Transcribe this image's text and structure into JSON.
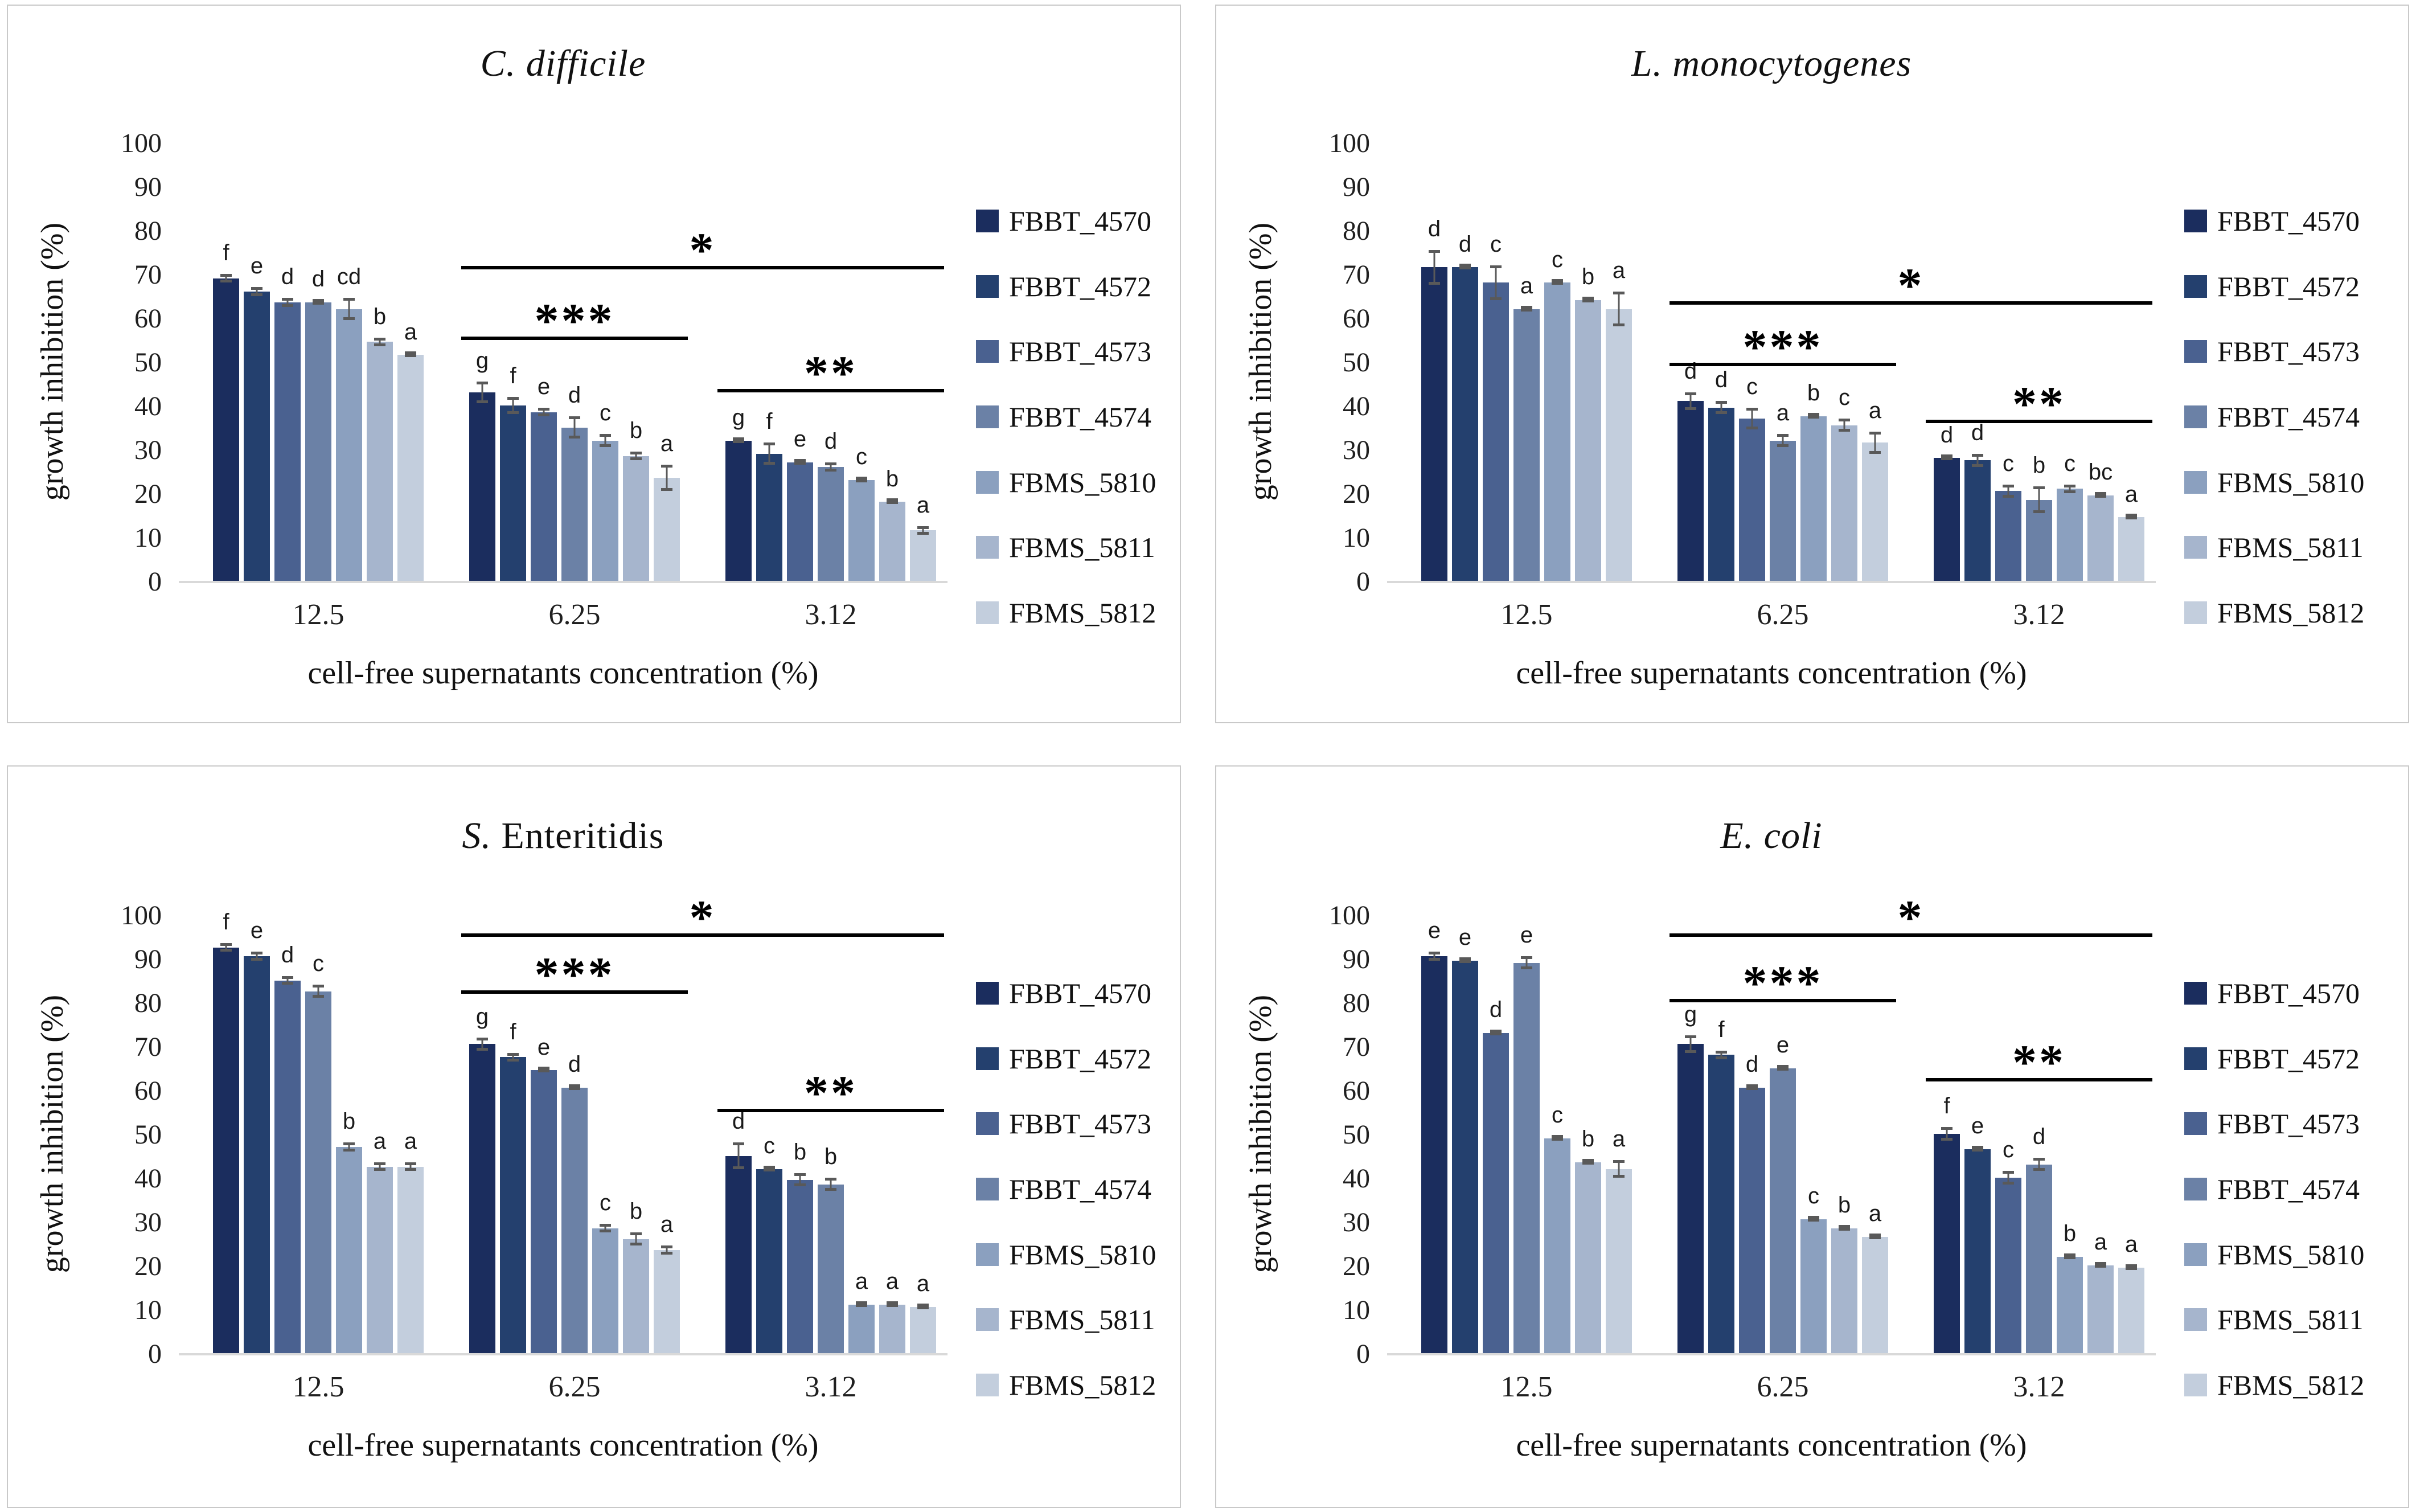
{
  "figure": {
    "ylabel": "growth inhibition (%)",
    "xlabel": "cell-free supernatants concentration (%)",
    "categories": [
      "12.5",
      "6.25",
      "3.12"
    ],
    "yticks": [
      100,
      90,
      80,
      70,
      60,
      50,
      40,
      30,
      20,
      10,
      0
    ],
    "ylim": [
      0,
      100
    ],
    "legend": [
      "FBBT_4570",
      "FBBT_4572",
      "FBBT_4573",
      "FBBT_4574",
      "FBMS_5810",
      "FBMS_5811",
      "FBMS_5812"
    ],
    "palette": [
      "#1b2d5e",
      "#24406e",
      "#4a6190",
      "#6b81a6",
      "#8ba0bf",
      "#a6b5cd",
      "#c3cedd"
    ],
    "error_color": "#595959",
    "baseline_color": "#d9d9d9"
  },
  "chart_data": [
    {
      "type": "bar",
      "title_plain": "C. difficile",
      "title_parts": [
        {
          "text": "C. difficile",
          "italic": true
        }
      ],
      "xlabel": "cell-free supernatants concentration (%)",
      "ylabel": "growth inhibition (%)",
      "ylim": [
        0,
        100
      ],
      "categories": [
        "12.5",
        "6.25",
        "3.12"
      ],
      "series": [
        {
          "name": "FBBT_4570",
          "values": [
            69,
            43,
            32
          ],
          "errors": [
            1,
            2.5,
            0.5
          ],
          "letters": [
            "f",
            "g",
            "g"
          ]
        },
        {
          "name": "FBBT_4572",
          "values": [
            66,
            40,
            29
          ],
          "errors": [
            1,
            2,
            2.5
          ],
          "letters": [
            "e",
            "f",
            "f"
          ]
        },
        {
          "name": "FBBT_4573",
          "values": [
            63.5,
            38.5,
            27
          ],
          "errors": [
            1,
            1,
            0.5
          ],
          "letters": [
            "d",
            "e",
            "e"
          ]
        },
        {
          "name": "FBBT_4574",
          "values": [
            63.5,
            35,
            26
          ],
          "errors": [
            0.5,
            2.5,
            1
          ],
          "letters": [
            "d",
            "d",
            "d"
          ]
        },
        {
          "name": "FBMS_5810",
          "values": [
            62,
            32,
            23
          ],
          "errors": [
            2.5,
            1.5,
            0.5
          ],
          "letters": [
            "cd",
            "c",
            "c"
          ]
        },
        {
          "name": "FBMS_5811",
          "values": [
            54.5,
            28.5,
            18
          ],
          "errors": [
            1,
            1,
            0.5
          ],
          "letters": [
            "b",
            "b",
            "b"
          ]
        },
        {
          "name": "FBMS_5812",
          "values": [
            51.5,
            23.5,
            11.5
          ],
          "errors": [
            0.5,
            3,
            1
          ],
          "letters": [
            "a",
            "a",
            "a"
          ]
        }
      ],
      "significance": [
        {
          "label": "*",
          "y": 71,
          "from": 1,
          "to": 2
        },
        {
          "label": "***",
          "y": 55,
          "from": 1,
          "to": 1
        },
        {
          "label": "**",
          "y": 43,
          "from": 2,
          "to": 2
        }
      ]
    },
    {
      "type": "bar",
      "title_plain": "L. monocytogenes",
      "title_parts": [
        {
          "text": "L. monocytogenes",
          "italic": true
        }
      ],
      "xlabel": "cell-free supernatants concentration (%)",
      "ylabel": "growth inhibition (%)",
      "ylim": [
        0,
        100
      ],
      "categories": [
        "12.5",
        "6.25",
        "3.12"
      ],
      "series": [
        {
          "name": "FBBT_4570",
          "values": [
            71.5,
            41,
            28
          ],
          "errors": [
            4,
            2,
            0.5
          ],
          "letters": [
            "d",
            "d",
            "d"
          ]
        },
        {
          "name": "FBBT_4572",
          "values": [
            71.5,
            39.5,
            27.5
          ],
          "errors": [
            0.5,
            1.5,
            1.5
          ],
          "letters": [
            "d",
            "d",
            "d"
          ]
        },
        {
          "name": "FBBT_4573",
          "values": [
            68,
            37,
            20.5
          ],
          "errors": [
            4,
            2.5,
            1.5
          ],
          "letters": [
            "c",
            "c",
            "c"
          ]
        },
        {
          "name": "FBBT_4574",
          "values": [
            62,
            32,
            18.5
          ],
          "errors": [
            0.5,
            1.5,
            3
          ],
          "letters": [
            "a",
            "a",
            "b"
          ]
        },
        {
          "name": "FBMS_5810",
          "values": [
            68,
            37.5,
            21
          ],
          "errors": [
            0.5,
            0.5,
            1
          ],
          "letters": [
            "c",
            "b",
            "c"
          ]
        },
        {
          "name": "FBMS_5811",
          "values": [
            64,
            35.5,
            19.5
          ],
          "errors": [
            0.5,
            1.5,
            0.5
          ],
          "letters": [
            "b",
            "c",
            "bc"
          ]
        },
        {
          "name": "FBMS_5812",
          "values": [
            62,
            31.5,
            14.5
          ],
          "errors": [
            4,
            2.5,
            0.5
          ],
          "letters": [
            "a",
            "a",
            "a"
          ]
        }
      ],
      "significance": [
        {
          "label": "*",
          "y": 63,
          "from": 1,
          "to": 2
        },
        {
          "label": "***",
          "y": 49,
          "from": 1,
          "to": 1
        },
        {
          "label": "**",
          "y": 36,
          "from": 2,
          "to": 2
        }
      ]
    },
    {
      "type": "bar",
      "title_plain": "S. Enteritidis",
      "title_parts": [
        {
          "text": "S.",
          "italic": true
        },
        {
          "text": " Enteritidis",
          "italic": false
        }
      ],
      "xlabel": "cell-free supernatants concentration (%)",
      "ylabel": "growth inhibition (%)",
      "ylim": [
        0,
        100
      ],
      "categories": [
        "12.5",
        "6.25",
        "3.12"
      ],
      "series": [
        {
          "name": "FBBT_4570",
          "values": [
            92.5,
            70.5,
            45
          ],
          "errors": [
            1,
            1.5,
            3
          ],
          "letters": [
            "f",
            "g",
            "d"
          ]
        },
        {
          "name": "FBBT_4572",
          "values": [
            90.5,
            67.5,
            42
          ],
          "errors": [
            1,
            1,
            0.5
          ],
          "letters": [
            "e",
            "f",
            "c"
          ]
        },
        {
          "name": "FBBT_4573",
          "values": [
            85,
            64.5,
            39.5
          ],
          "errors": [
            1,
            0.5,
            1.5
          ],
          "letters": [
            "d",
            "e",
            "b"
          ]
        },
        {
          "name": "FBBT_4574",
          "values": [
            82.5,
            60.5,
            38.5
          ],
          "errors": [
            1.5,
            0.5,
            1.5
          ],
          "letters": [
            "c",
            "d",
            "b"
          ]
        },
        {
          "name": "FBMS_5810",
          "values": [
            47,
            28.5,
            11
          ],
          "errors": [
            1,
            1,
            0.5
          ],
          "letters": [
            "b",
            "c",
            "a"
          ]
        },
        {
          "name": "FBMS_5811",
          "values": [
            42.5,
            26,
            11
          ],
          "errors": [
            1,
            1.5,
            0.5
          ],
          "letters": [
            "a",
            "b",
            "a"
          ]
        },
        {
          "name": "FBMS_5812",
          "values": [
            42.5,
            23.5,
            10.5
          ],
          "errors": [
            1,
            1,
            0.5
          ],
          "letters": [
            "a",
            "a",
            "a"
          ]
        }
      ],
      "significance": [
        {
          "label": "*",
          "y": 95,
          "from": 1,
          "to": 2
        },
        {
          "label": "***",
          "y": 82,
          "from": 1,
          "to": 1
        },
        {
          "label": "**",
          "y": 55,
          "from": 2,
          "to": 2
        }
      ]
    },
    {
      "type": "bar",
      "title_plain": "E. coli",
      "title_parts": [
        {
          "text": "E. coli",
          "italic": true
        }
      ],
      "xlabel": "cell-free supernatants concentration (%)",
      "ylabel": "growth inhibition (%)",
      "ylim": [
        0,
        100
      ],
      "categories": [
        "12.5",
        "6.25",
        "3.12"
      ],
      "series": [
        {
          "name": "FBBT_4570",
          "values": [
            90.5,
            70.5,
            50
          ],
          "errors": [
            1,
            2,
            1.5
          ],
          "letters": [
            "e",
            "g",
            "f"
          ]
        },
        {
          "name": "FBBT_4572",
          "values": [
            89.5,
            68,
            46.5
          ],
          "errors": [
            0.5,
            1,
            0.5
          ],
          "letters": [
            "e",
            "f",
            "e"
          ]
        },
        {
          "name": "FBBT_4573",
          "values": [
            73,
            60.5,
            40
          ],
          "errors": [
            0.5,
            0.5,
            1.5
          ],
          "letters": [
            "d",
            "d",
            "c"
          ]
        },
        {
          "name": "FBBT_4574",
          "values": [
            89,
            65,
            43
          ],
          "errors": [
            1.5,
            0.5,
            1.5
          ],
          "letters": [
            "e",
            "e",
            "d"
          ]
        },
        {
          "name": "FBMS_5810",
          "values": [
            49,
            30.5,
            22
          ],
          "errors": [
            0.5,
            0.5,
            0.5
          ],
          "letters": [
            "c",
            "c",
            "b"
          ]
        },
        {
          "name": "FBMS_5811",
          "values": [
            43.5,
            28.5,
            20
          ],
          "errors": [
            0.5,
            0.5,
            0.5
          ],
          "letters": [
            "b",
            "b",
            "a"
          ]
        },
        {
          "name": "FBMS_5812",
          "values": [
            42,
            26.5,
            19.5
          ],
          "errors": [
            2,
            0.5,
            0.5
          ],
          "letters": [
            "a",
            "a",
            "a"
          ]
        }
      ],
      "significance": [
        {
          "label": "*",
          "y": 95,
          "from": 1,
          "to": 2
        },
        {
          "label": "***",
          "y": 80,
          "from": 1,
          "to": 1
        },
        {
          "label": "**",
          "y": 62,
          "from": 2,
          "to": 2
        }
      ]
    }
  ]
}
